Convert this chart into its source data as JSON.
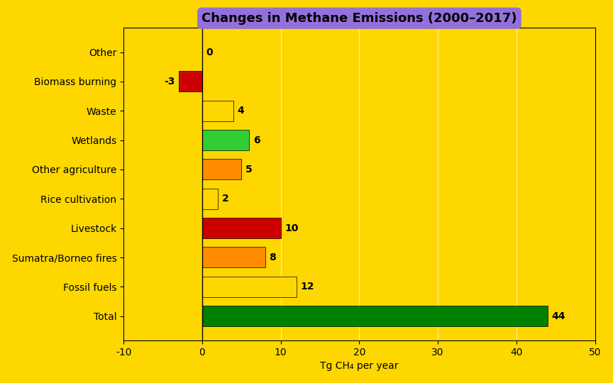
{
  "title": "Changes in Methane Emissions (2000–2017)",
  "categories": [
    "Total",
    "Fossil fuels",
    "Sumatra/Borneo fires",
    "Livestock",
    "Rice cultivation",
    "Other agriculture",
    "Wetlands",
    "Waste",
    "Biomass burning",
    "Other"
  ],
  "values": [
    44.0,
    12.0,
    8.0,
    10.0,
    2.0,
    5.0,
    6.0,
    4.0,
    -3.0,
    0.0
  ],
  "bar_colors": [
    "#008000",
    "#FFD700",
    "#FF8C00",
    "#CC0000",
    "#FFD700",
    "#FF8C00",
    "#32CD32",
    "#FFD700",
    "#CC0000",
    "#FFD700"
  ],
  "background_color": "#FFD700",
  "title_bg_color": "#9370DB",
  "title_text_color": "#000000",
  "xlabel": "Tg CH₄ per year",
  "xlim": [
    -10,
    50
  ],
  "xticks": [
    -10,
    0,
    10,
    20,
    30,
    40,
    50
  ],
  "figsize": [
    8.64,
    5.4
  ],
  "dpi": 100,
  "bar_height": 0.7,
  "bar_edgecolor": "black",
  "bar_linewidth": 0.5,
  "label_fontsize": 10,
  "title_fontsize": 13,
  "tick_fontsize": 10,
  "value_fontsize": 10,
  "spine_color": "black",
  "grid_color": "white",
  "grid_alpha": 0.5,
  "grid_linewidth": 1.0
}
